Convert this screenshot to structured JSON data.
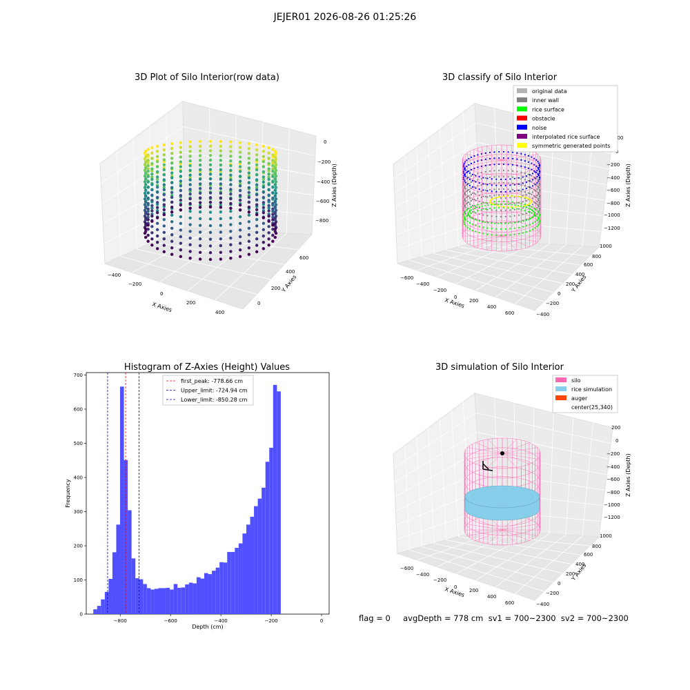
{
  "figure": {
    "title": "JEJER01 2026-08-26 01:25:26",
    "status_line": "flag = 0     avgDepth = 778 cm  sv1 = 700~2300  sv2 = 700~2300"
  },
  "colors": {
    "histogram_bar": "#4d4dff",
    "peak_line": "#ff0000",
    "limit_line": "#0000cc",
    "silo": "#ff69b4",
    "rice_simulation": "#87ceeb",
    "auger": "#ff4500",
    "original_data": "#b3b3b3",
    "inner_wall": "#808080",
    "rice_surface": "#00ff00",
    "obstacle": "#ff0000",
    "noise": "#0000ff",
    "interpolated_rice_surface": "#800080",
    "symmetric_generated_points": "#ffff00"
  },
  "plots": {
    "raw": {
      "title": "3D Plot of Silo Interior(row data)",
      "xlabel": "X Axies",
      "ylabel": "Y Axies",
      "zlabel": "Z Axies (Depth)",
      "xticks": [
        "−400",
        "−200",
        "0",
        "200",
        "400"
      ],
      "yticks": [
        "0",
        "200",
        "400",
        "600"
      ],
      "zticks": [
        "0",
        "−200",
        "−400",
        "−600",
        "−800"
      ]
    },
    "classify": {
      "title": "3D classify of Silo Interior",
      "xlabel": "X Axies",
      "ylabel": "Y Axies",
      "zlabel": "Z Axies (Depth)",
      "xticks": [
        "−600",
        "−400",
        "−200",
        "0",
        "200",
        "400",
        "600"
      ],
      "yticks": [
        "−400",
        "−200",
        "0",
        "200",
        "400",
        "600",
        "800",
        "1000"
      ],
      "zticks": [
        "200",
        "0",
        "−200",
        "−400",
        "−600",
        "−800",
        "−1000",
        "−1200"
      ],
      "legend": [
        {
          "label": "original data",
          "color": "#b3b3b3"
        },
        {
          "label": "inner wall",
          "color": "#808080"
        },
        {
          "label": "rice surface",
          "color": "#00ff00"
        },
        {
          "label": "obstacle",
          "color": "#ff0000"
        },
        {
          "label": "noise",
          "color": "#0000ff"
        },
        {
          "label": "interpolated rice surface",
          "color": "#800080"
        },
        {
          "label": "symmetric generated points",
          "color": "#ffff00"
        }
      ]
    },
    "simulation": {
      "title": "3D simulation of Silo Interior",
      "xlabel": "X Axies",
      "ylabel": "Y Axies",
      "zlabel": "Z Axies (Depth)",
      "xticks": [
        "−600",
        "−400",
        "−200",
        "0",
        "200",
        "400",
        "600"
      ],
      "yticks": [
        "−400",
        "−200",
        "0",
        "200",
        "400",
        "600",
        "800",
        "1000"
      ],
      "zticks": [
        "200",
        "0",
        "−200",
        "−400",
        "−600",
        "−800",
        "−1000",
        "−1200"
      ],
      "legend": [
        {
          "label": "silo",
          "color": "#ff69b4"
        },
        {
          "label": "rice simulation",
          "color": "#87ceeb"
        },
        {
          "label": "auger",
          "color": "#ff4500"
        },
        {
          "label": "center(25,340)",
          "color": null
        }
      ]
    }
  },
  "chart_data": [
    {
      "type": "bar",
      "title": "Histogram of Z-Axies (Height) Values",
      "xlabel": "Depth (cm)",
      "ylabel": "Frequency",
      "xlim": [
        -935,
        30
      ],
      "ylim": [
        0,
        707
      ],
      "xticks": [
        -800,
        -600,
        -400,
        -200,
        0
      ],
      "yticks": [
        0,
        100,
        200,
        300,
        400,
        500,
        600,
        700
      ],
      "tick_labels_x": [
        "−800",
        "−600",
        "−400",
        "−200",
        "0"
      ],
      "tick_labels_y": [
        "0",
        "100",
        "200",
        "300",
        "400",
        "500",
        "600",
        "700"
      ],
      "bin_start": -907,
      "bin_width": 15.2,
      "values": [
        14,
        24,
        43,
        65,
        103,
        181,
        262,
        666,
        451,
        304,
        163,
        105,
        102,
        88,
        76,
        72,
        74,
        76,
        76,
        77,
        72,
        88,
        77,
        78,
        87,
        92,
        90,
        108,
        104,
        120,
        117,
        127,
        136,
        152,
        151,
        182,
        182,
        194,
        207,
        236,
        262,
        285,
        316,
        338,
        370,
        446,
        487,
        671,
        652
      ],
      "vlines": [
        {
          "label": "first_peak: -778.66 cm",
          "x": -778.66,
          "color": "#ff0000",
          "style": "dashed"
        },
        {
          "label": "Upper_limit: -724.94 cm",
          "x": -724.94,
          "color": "#0000cc",
          "style": "dashed"
        },
        {
          "label": "Lower_limit: -850.28 cm",
          "x": -850.28,
          "color": "#0000cc",
          "style": "dashed"
        }
      ],
      "legend_position": "upper-center"
    }
  ]
}
